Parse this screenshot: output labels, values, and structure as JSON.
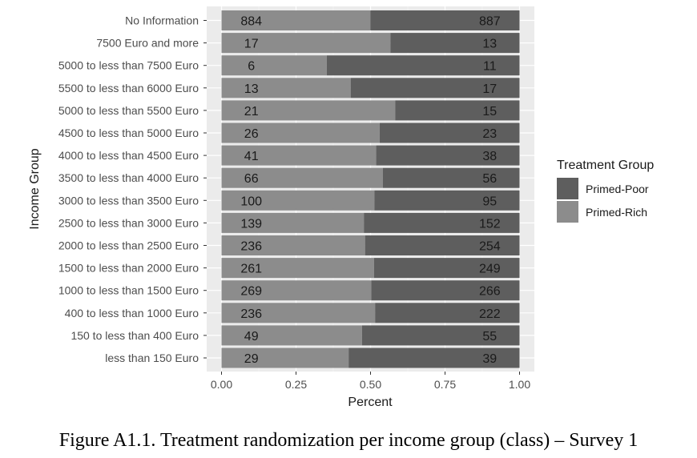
{
  "chart_data": {
    "type": "bar",
    "orientation": "horizontal",
    "stacked": "percent",
    "xlabel": "Percent",
    "ylabel": "Income Group",
    "xlim": [
      0,
      1
    ],
    "xticks": [
      "0.00",
      "0.25",
      "0.50",
      "0.75",
      "1.00"
    ],
    "categories": [
      "No Information",
      "7500 Euro and more",
      "5000 to less than 7500 Euro",
      "5500 to less than 6000 Euro",
      "5000 to less than 5500 Euro",
      "4500 to less than 5000 Euro",
      "4000 to less than 4500 Euro",
      "3500 to less than 4000 Euro",
      "3000 to less than 3500 Euro",
      "2500 to less than 3000 Euro",
      "2000 to less than 2500 Euro",
      "1500 to less than 2000 Euro",
      "1000 to less than 1500 Euro",
      "400 to less than 1000 Euro",
      "150 to less than 400 Euro",
      "less than 150 Euro"
    ],
    "series": [
      {
        "name": "Primed-Rich",
        "color": "#8c8c8c",
        "values": [
          884,
          17,
          6,
          13,
          21,
          26,
          41,
          66,
          100,
          139,
          236,
          261,
          269,
          236,
          49,
          29
        ]
      },
      {
        "name": "Primed-Poor",
        "color": "#5e5e5e",
        "values": [
          887,
          13,
          11,
          17,
          15,
          23,
          38,
          56,
          95,
          152,
          254,
          249,
          266,
          222,
          55,
          39
        ]
      }
    ],
    "legend": {
      "title": "Treatment Group",
      "position": "right",
      "order": [
        "Primed-Poor",
        "Primed-Rich"
      ]
    },
    "grid": true,
    "panel_background": "#ebebeb"
  },
  "caption": "Figure A1.1. Treatment randomization per income group (class) – Survey 1"
}
